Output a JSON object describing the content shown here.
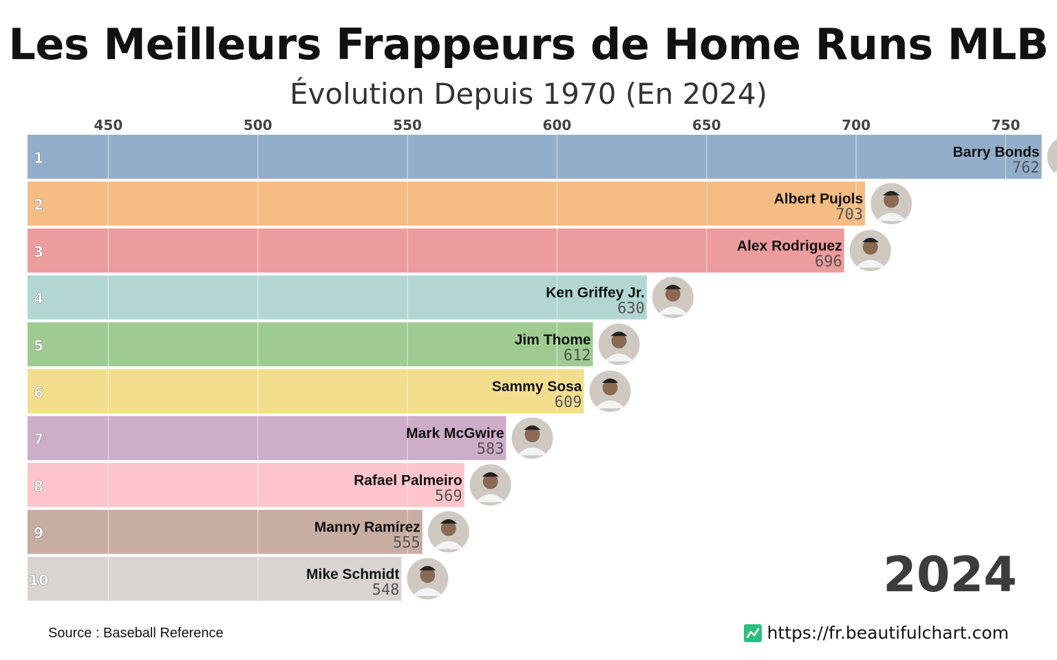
{
  "title": "Les Meilleurs Frappeurs de Home Runs MLB",
  "subtitle": "Évolution Depuis 1970 (En 2024)",
  "year": "2024",
  "source": "Source : Baseball Reference",
  "site": "https://fr.beautifulchart.com",
  "icons": {
    "site": "chart-line-icon",
    "player": "player-photo-icon"
  },
  "chart_data": {
    "type": "bar",
    "orientation": "horizontal",
    "title": "Les Meilleurs Frappeurs de Home Runs MLB",
    "subtitle": "Évolution Depuis 1970 (En 2024)",
    "xlim": [
      423,
      763
    ],
    "xticks": [
      450,
      500,
      550,
      600,
      650,
      700,
      750
    ],
    "grid": true,
    "axis_position": "top",
    "categories": [
      "Barry Bonds",
      "Albert Pujols",
      "Alex Rodriguez",
      "Ken Griffey Jr.",
      "Jim Thome",
      "Sammy Sosa",
      "Mark McGwire",
      "Rafael Palmeiro",
      "Manny Ramírez",
      "Mike Schmidt"
    ],
    "ranks": [
      "1",
      "2",
      "3",
      "4",
      "5",
      "6",
      "7",
      "8",
      "9",
      "10"
    ],
    "values": [
      762,
      703,
      696,
      630,
      612,
      609,
      583,
      569,
      555,
      548
    ],
    "colors": [
      "#93aeca",
      "#f5bc84",
      "#ec9c9c",
      "#b2d7d3",
      "#9ecb91",
      "#f3de8e",
      "#cdadc8",
      "#fec4cb",
      "#c8ada2",
      "#d9d4d1"
    ]
  }
}
